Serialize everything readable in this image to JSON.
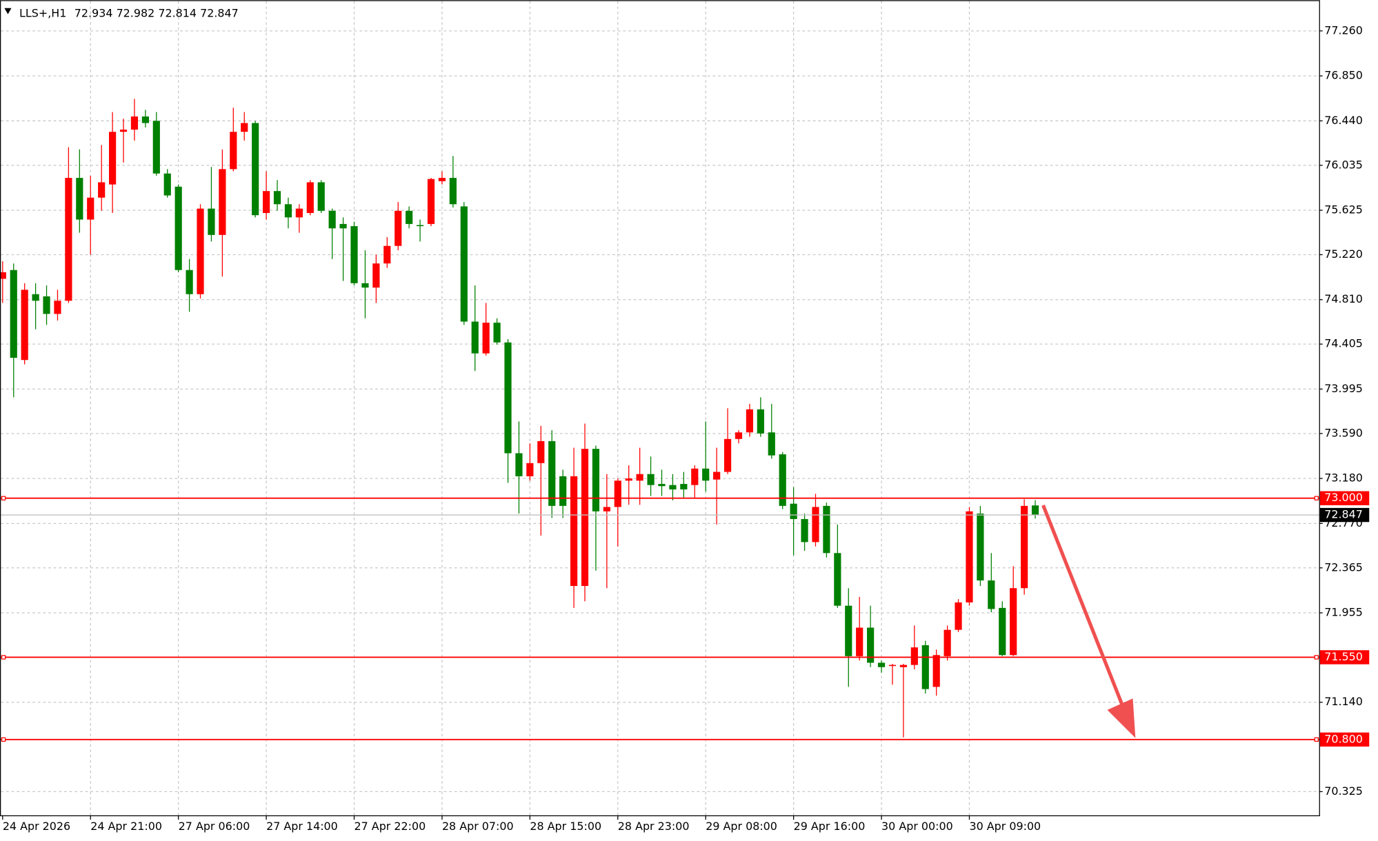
{
  "chart_data": {
    "type": "candlestick",
    "title": "LLS+,H1",
    "categories": [
      "24 Apr 2026",
      null,
      null,
      null,
      null,
      null,
      null,
      null,
      "24 Apr 21:00",
      null,
      null,
      null,
      null,
      null,
      null,
      null,
      "27 Apr 06:00",
      null,
      null,
      null,
      null,
      null,
      null,
      null,
      "27 Apr 14:00",
      null,
      null,
      null,
      null,
      null,
      null,
      null,
      "27 Apr 22:00",
      null,
      null,
      null,
      null,
      null,
      null,
      null,
      "28 Apr 07:00",
      null,
      null,
      null,
      null,
      null,
      null,
      null,
      "28 Apr 15:00",
      null,
      null,
      null,
      null,
      null,
      null,
      null,
      "28 Apr 23:00",
      null,
      null,
      null,
      null,
      null,
      null,
      null,
      "29 Apr 08:00",
      null,
      null,
      null,
      null,
      null,
      null,
      null,
      "29 Apr 16:00",
      null,
      null,
      null,
      null,
      null,
      null,
      null,
      "30 Apr 00:00",
      null,
      null,
      null,
      null,
      null,
      null,
      null,
      "30 Apr 09:00",
      null,
      null,
      null,
      null,
      null,
      null
    ],
    "open": [
      75.0,
      75.08,
      74.26,
      74.86,
      74.84,
      74.68,
      74.8,
      75.92,
      75.54,
      75.74,
      75.86,
      76.34,
      76.36,
      76.48,
      76.44,
      75.96,
      75.84,
      75.08,
      74.86,
      75.64,
      75.4,
      76.0,
      76.34,
      76.42,
      75.6,
      75.8,
      75.68,
      75.56,
      75.6,
      75.88,
      75.62,
      75.5,
      75.48,
      74.96,
      74.92,
      75.14,
      75.3,
      75.62,
      75.49,
      75.5,
      75.89,
      75.92,
      75.66,
      74.61,
      74.32,
      74.6,
      74.42,
      73.41,
      73.2,
      73.32,
      73.52,
      73.2,
      72.2,
      72.2,
      73.45,
      72.88,
      72.92,
      73.16,
      73.16,
      73.22,
      73.13,
      73.12,
      73.13,
      73.12,
      73.27,
      73.17,
      73.24,
      73.54,
      73.6,
      73.81,
      73.6,
      73.4,
      72.95,
      72.81,
      72.6,
      72.93,
      72.5,
      72.02,
      71.56,
      71.82,
      71.5,
      71.47,
      71.46,
      71.48,
      71.66,
      71.28,
      71.56,
      71.8,
      72.05,
      72.86,
      72.25,
      72.0,
      71.57,
      72.18,
      72.934
    ],
    "high": [
      75.16,
      75.14,
      74.96,
      74.96,
      74.94,
      74.9,
      76.2,
      76.18,
      75.94,
      76.22,
      76.52,
      76.46,
      76.64,
      76.54,
      76.52,
      76.0,
      75.86,
      75.18,
      75.68,
      76.02,
      76.18,
      76.56,
      76.52,
      76.44,
      75.98,
      75.9,
      75.74,
      75.68,
      75.9,
      75.9,
      75.64,
      75.56,
      75.52,
      75.26,
      75.22,
      75.38,
      75.7,
      75.66,
      75.54,
      75.92,
      75.98,
      76.12,
      75.7,
      74.94,
      74.78,
      74.64,
      74.45,
      73.7,
      73.5,
      73.66,
      73.62,
      73.26,
      73.46,
      73.68,
      73.48,
      73.22,
      73.18,
      73.3,
      73.46,
      73.38,
      73.26,
      73.22,
      73.24,
      73.3,
      73.7,
      73.46,
      73.82,
      73.62,
      73.86,
      73.92,
      73.86,
      73.42,
      73.1,
      72.86,
      73.04,
      72.96,
      72.76,
      72.18,
      72.1,
      72.02,
      71.52,
      71.49,
      71.49,
      71.84,
      71.7,
      71.62,
      71.84,
      72.08,
      72.92,
      72.93,
      72.5,
      72.06,
      72.38,
      72.99,
      72.982
    ],
    "low": [
      74.78,
      73.92,
      74.22,
      74.54,
      74.58,
      74.62,
      74.78,
      75.42,
      75.22,
      75.62,
      75.6,
      76.06,
      76.26,
      76.38,
      75.94,
      75.74,
      75.06,
      74.7,
      74.82,
      75.34,
      75.02,
      75.98,
      76.26,
      75.56,
      75.54,
      75.62,
      75.46,
      75.42,
      75.58,
      75.6,
      75.18,
      74.98,
      74.94,
      74.64,
      74.78,
      75.1,
      75.26,
      75.46,
      75.34,
      75.48,
      75.86,
      75.65,
      74.58,
      74.16,
      74.3,
      74.4,
      73.14,
      72.86,
      73.16,
      72.66,
      72.82,
      72.82,
      72.0,
      72.06,
      72.34,
      72.18,
      72.56,
      72.94,
      72.94,
      73.02,
      73.02,
      72.98,
      73.0,
      73.0,
      73.06,
      72.76,
      73.22,
      73.5,
      73.56,
      73.56,
      73.36,
      72.9,
      72.48,
      72.52,
      72.56,
      72.46,
      72.0,
      71.28,
      71.52,
      71.46,
      71.41,
      71.3,
      70.82,
      71.44,
      71.22,
      71.2,
      71.52,
      71.78,
      72.02,
      72.2,
      71.96,
      71.56,
      71.56,
      72.12,
      72.814
    ],
    "close": [
      75.06,
      74.28,
      74.9,
      74.8,
      74.68,
      74.8,
      75.92,
      75.54,
      75.74,
      75.88,
      76.34,
      76.36,
      76.48,
      76.42,
      75.96,
      75.76,
      75.08,
      74.86,
      75.64,
      75.4,
      76.0,
      76.34,
      76.42,
      75.58,
      75.8,
      75.68,
      75.56,
      75.64,
      75.88,
      75.62,
      75.46,
      75.46,
      74.96,
      74.92,
      75.14,
      75.3,
      75.62,
      75.5,
      75.48,
      75.91,
      75.92,
      75.68,
      74.61,
      74.32,
      74.6,
      74.42,
      73.41,
      73.2,
      73.32,
      73.52,
      72.93,
      72.93,
      73.2,
      73.45,
      72.88,
      72.92,
      73.16,
      73.18,
      73.22,
      73.12,
      73.11,
      73.08,
      73.08,
      73.27,
      73.16,
      73.24,
      73.54,
      73.6,
      73.81,
      73.59,
      73.39,
      72.93,
      72.81,
      72.6,
      72.92,
      72.5,
      72.02,
      71.56,
      71.82,
      71.5,
      71.46,
      71.48,
      71.48,
      71.64,
      71.26,
      71.57,
      71.8,
      72.05,
      72.88,
      72.25,
      71.99,
      71.57,
      72.18,
      72.93,
      72.847
    ],
    "up_color": "#ff0000",
    "down_color": "#008000",
    "ylim": [
      70.109,
      77.516
    ],
    "yticks": [
      {
        "value": 77.26,
        "label": "77.260"
      },
      {
        "value": 76.85,
        "label": "76.850"
      },
      {
        "value": 76.44,
        "label": "76.440"
      },
      {
        "value": 76.035,
        "label": "76.035"
      },
      {
        "value": 75.625,
        "label": "75.625"
      },
      {
        "value": 75.22,
        "label": "75.220"
      },
      {
        "value": 74.81,
        "label": "74.810"
      },
      {
        "value": 74.405,
        "label": "74.405"
      },
      {
        "value": 73.995,
        "label": "73.995"
      },
      {
        "value": 73.59,
        "label": "73.590"
      },
      {
        "value": 73.18,
        "label": "73.180"
      },
      {
        "value": 72.77,
        "label": "72.770"
      },
      {
        "value": 72.365,
        "label": "72.365"
      },
      {
        "value": 71.955,
        "label": "71.955"
      },
      {
        "value": 71.14,
        "label": "71.140"
      },
      {
        "value": 70.325,
        "label": "70.325"
      }
    ],
    "levels": [
      {
        "value": 73,
        "label": "73.000"
      },
      {
        "value": 71.55,
        "label": "71.550"
      },
      {
        "value": 70.8,
        "label": "70.800"
      }
    ],
    "level_color": "#ff0000",
    "grid": true
  }
}
